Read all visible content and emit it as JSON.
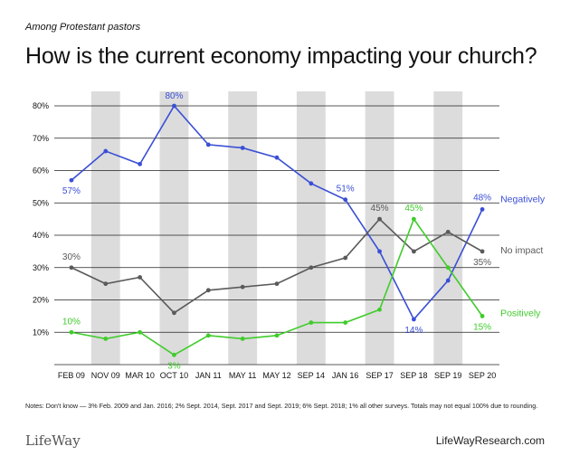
{
  "header": {
    "subtitle": "Among Protestant pastors",
    "title": "How is the current economy impacting your church?"
  },
  "footer": {
    "notes": "Notes: Don't know — 3% Feb. 2009 and Jan. 2016; 2% Sept. 2014, Sept. 2017 and Sept. 2019; 6% Sept. 2018; 1% all other surveys. Totals may not equal 100% due to rounding.",
    "logo": "LifeWay",
    "site": "LifeWayResearch.com"
  },
  "chart_data": {
    "type": "line",
    "categories": [
      "FEB 09",
      "NOV 09",
      "MAR 10",
      "OCT 10",
      "JAN 11",
      "MAY 11",
      "MAY 12",
      "SEP 14",
      "JAN 16",
      "SEP 17",
      "SEP 18",
      "SEP 19",
      "SEP 20"
    ],
    "ylim": [
      0,
      80
    ],
    "yticks": [
      10,
      20,
      30,
      40,
      50,
      60,
      70,
      80
    ],
    "ytick_labels": [
      "10%",
      "20%",
      "30%",
      "40%",
      "50%",
      "60%",
      "70%",
      "80%"
    ],
    "grid": true,
    "shaded_columns": [
      1,
      3,
      5,
      7,
      9,
      11
    ],
    "series": [
      {
        "name": "Negatively",
        "color": "#3a4fd6",
        "values": [
          57,
          66,
          62,
          80,
          68,
          67,
          64,
          56,
          51,
          35,
          14,
          26,
          48
        ],
        "labels": [
          {
            "index": 0,
            "text": "57%"
          },
          {
            "index": 3,
            "text": "80%"
          },
          {
            "index": 8,
            "text": "51%"
          },
          {
            "index": 10,
            "text": "14%"
          },
          {
            "index": 12,
            "text": "48%"
          }
        ]
      },
      {
        "name": "No impact",
        "color": "#5a5a5a",
        "values": [
          30,
          25,
          27,
          16,
          23,
          24,
          25,
          30,
          33,
          45,
          35,
          41,
          35
        ],
        "labels": [
          {
            "index": 0,
            "text": "30%"
          },
          {
            "index": 9,
            "text": "45%"
          },
          {
            "index": 12,
            "text": "35%"
          }
        ]
      },
      {
        "name": "Positively",
        "color": "#3fcc2b",
        "values": [
          10,
          8,
          10,
          3,
          9,
          8,
          9,
          13,
          13,
          17,
          45,
          30,
          15
        ],
        "labels": [
          {
            "index": 0,
            "text": "10%"
          },
          {
            "index": 3,
            "text": "3%"
          },
          {
            "index": 10,
            "text": "45%"
          },
          {
            "index": 12,
            "text": "15%"
          }
        ]
      }
    ]
  }
}
